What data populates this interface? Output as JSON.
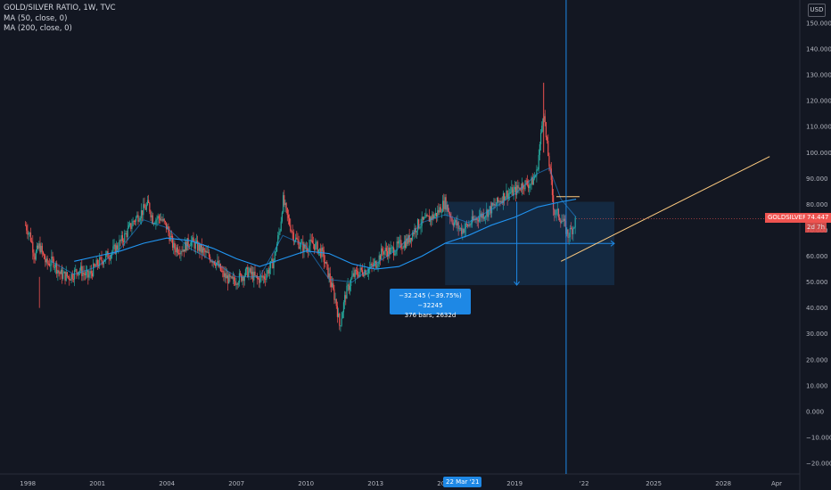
{
  "legend": {
    "title": "GOLD/SILVER RATIO, 1W, TVC",
    "ma50": "MA (50, close, 0)",
    "ma200": "MA (200, close, 0)"
  },
  "currency_button": "USD",
  "symbol_tag": {
    "name": "GOLDSILVER",
    "value": "74.447",
    "countdown": "2d 7h"
  },
  "measure": {
    "line1": "−32.245 (−39.75%) −32245",
    "line2": "376 bars, 2632d"
  },
  "crosshair_date": "22 Mar '21",
  "colors": {
    "background": "#131722",
    "up": "#26a69a",
    "down": "#ef5350",
    "ma50": "#4b5a7a",
    "ma200": "#2196f3",
    "trendline": "#ffcc80",
    "measure_fill": "#1e88e5",
    "price_tag": "#ef5350"
  },
  "chart_data": {
    "type": "candlestick",
    "title": "GOLD/SILVER RATIO, 1W, TVC",
    "y_ticks": [
      150,
      140,
      130,
      120,
      110,
      100,
      90,
      80,
      70,
      60,
      50,
      40,
      30,
      20,
      10,
      0,
      -10,
      -20
    ],
    "y_tick_labels": [
      "150.000",
      "140.000",
      "130.000",
      "120.000",
      "110.000",
      "100.000",
      "90.000",
      "80.000",
      "70.000",
      "60.000",
      "50.000",
      "40.000",
      "30.000",
      "20.000",
      "10.000",
      "0.000",
      "−10.000",
      "−20.000"
    ],
    "x_tick_labels": [
      "1998",
      "2001",
      "2004",
      "2007",
      "2010",
      "2013",
      "2016",
      "2019",
      "'22",
      "2025",
      "2028",
      "Apr"
    ],
    "x_tick_years": [
      1998,
      2001,
      2004,
      2007,
      2010,
      2013,
      2016,
      2019,
      2022,
      2025,
      2028,
      2030.3
    ],
    "ylim": [
      -22,
      153
    ],
    "xlim": [
      1996.8,
      2031.3
    ],
    "last_value": 74.447,
    "price_path": [
      [
        1997.9,
        72
      ],
      [
        1998.1,
        68
      ],
      [
        1998.3,
        60
      ],
      [
        1998.5,
        64
      ],
      [
        1998.8,
        57
      ],
      [
        1999.1,
        58
      ],
      [
        1999.4,
        53
      ],
      [
        1999.8,
        52
      ],
      [
        2000.2,
        55
      ],
      [
        2000.6,
        52
      ],
      [
        2001.0,
        57
      ],
      [
        2001.4,
        60
      ],
      [
        2001.8,
        63
      ],
      [
        2002.2,
        68
      ],
      [
        2002.6,
        74
      ],
      [
        2003.0,
        78
      ],
      [
        2003.2,
        80
      ],
      [
        2003.4,
        74
      ],
      [
        2003.7,
        75
      ],
      [
        2004.0,
        71
      ],
      [
        2004.3,
        63
      ],
      [
        2004.7,
        63
      ],
      [
        2005.0,
        66
      ],
      [
        2005.4,
        63
      ],
      [
        2005.8,
        60
      ],
      [
        2006.1,
        58
      ],
      [
        2006.4,
        53
      ],
      [
        2006.8,
        50
      ],
      [
        2007.2,
        52
      ],
      [
        2007.5,
        54
      ],
      [
        2007.9,
        51
      ],
      [
        2008.2,
        52
      ],
      [
        2008.6,
        58
      ],
      [
        2008.9,
        72
      ],
      [
        2009.0,
        82
      ],
      [
        2009.2,
        75
      ],
      [
        2009.5,
        67
      ],
      [
        2009.9,
        63
      ],
      [
        2010.3,
        65
      ],
      [
        2010.7,
        61
      ],
      [
        2011.0,
        52
      ],
      [
        2011.3,
        42
      ],
      [
        2011.45,
        33
      ],
      [
        2011.7,
        45
      ],
      [
        2012.0,
        52
      ],
      [
        2012.3,
        54
      ],
      [
        2012.7,
        55
      ],
      [
        2013.0,
        57
      ],
      [
        2013.3,
        62
      ],
      [
        2013.7,
        62
      ],
      [
        2014.0,
        64
      ],
      [
        2014.4,
        66
      ],
      [
        2014.8,
        72
      ],
      [
        2015.2,
        74
      ],
      [
        2015.6,
        76
      ],
      [
        2016.0,
        81
      ],
      [
        2016.3,
        74
      ],
      [
        2016.7,
        70
      ],
      [
        2017.0,
        72
      ],
      [
        2017.4,
        75
      ],
      [
        2017.8,
        77
      ],
      [
        2018.2,
        80
      ],
      [
        2018.6,
        84
      ],
      [
        2019.0,
        85
      ],
      [
        2019.4,
        88
      ],
      [
        2019.7,
        88
      ],
      [
        2019.95,
        92
      ],
      [
        2020.15,
        108
      ],
      [
        2020.25,
        118
      ],
      [
        2020.35,
        106
      ],
      [
        2020.5,
        95
      ],
      [
        2020.7,
        77
      ],
      [
        2020.9,
        76
      ],
      [
        2021.1,
        73
      ],
      [
        2021.3,
        68
      ],
      [
        2021.5,
        71
      ],
      [
        2021.65,
        74.4
      ]
    ],
    "ma200_path": [
      [
        2000.0,
        58
      ],
      [
        2001.0,
        60
      ],
      [
        2002.0,
        62
      ],
      [
        2003.0,
        65
      ],
      [
        2004.0,
        67
      ],
      [
        2005.0,
        66
      ],
      [
        2006.0,
        63
      ],
      [
        2007.0,
        59
      ],
      [
        2008.0,
        56
      ],
      [
        2009.0,
        59
      ],
      [
        2010.0,
        62
      ],
      [
        2011.0,
        61
      ],
      [
        2012.0,
        57
      ],
      [
        2013.0,
        55
      ],
      [
        2014.0,
        56
      ],
      [
        2015.0,
        60
      ],
      [
        2016.0,
        65
      ],
      [
        2017.0,
        68
      ],
      [
        2018.0,
        72
      ],
      [
        2019.0,
        75
      ],
      [
        2020.0,
        79
      ],
      [
        2021.0,
        81
      ],
      [
        2021.65,
        82
      ]
    ],
    "ma50_path": [
      [
        1999.0,
        58
      ],
      [
        2000.0,
        53
      ],
      [
        2001.0,
        56
      ],
      [
        2002.0,
        63
      ],
      [
        2003.0,
        74
      ],
      [
        2004.0,
        71
      ],
      [
        2005.0,
        63
      ],
      [
        2006.0,
        58
      ],
      [
        2007.0,
        52
      ],
      [
        2008.0,
        52
      ],
      [
        2009.0,
        68
      ],
      [
        2010.0,
        64
      ],
      [
        2011.0,
        51
      ],
      [
        2012.0,
        50
      ],
      [
        2013.0,
        57
      ],
      [
        2014.0,
        63
      ],
      [
        2015.0,
        73
      ],
      [
        2016.0,
        76
      ],
      [
        2017.0,
        73
      ],
      [
        2018.0,
        78
      ],
      [
        2019.0,
        84
      ],
      [
        2020.0,
        92
      ],
      [
        2020.5,
        94
      ],
      [
        2021.0,
        82
      ],
      [
        2021.65,
        75
      ]
    ],
    "measure_range": {
      "x_from": 2016.0,
      "x_to": 2023.3,
      "y_from": 81.0,
      "y_to": 48.8
    },
    "trend_line": {
      "x_from": 2021.0,
      "y_from": 58.0,
      "x_to": 2030.0,
      "y_to": 98.5
    },
    "crosshair_x": 2021.22
  }
}
